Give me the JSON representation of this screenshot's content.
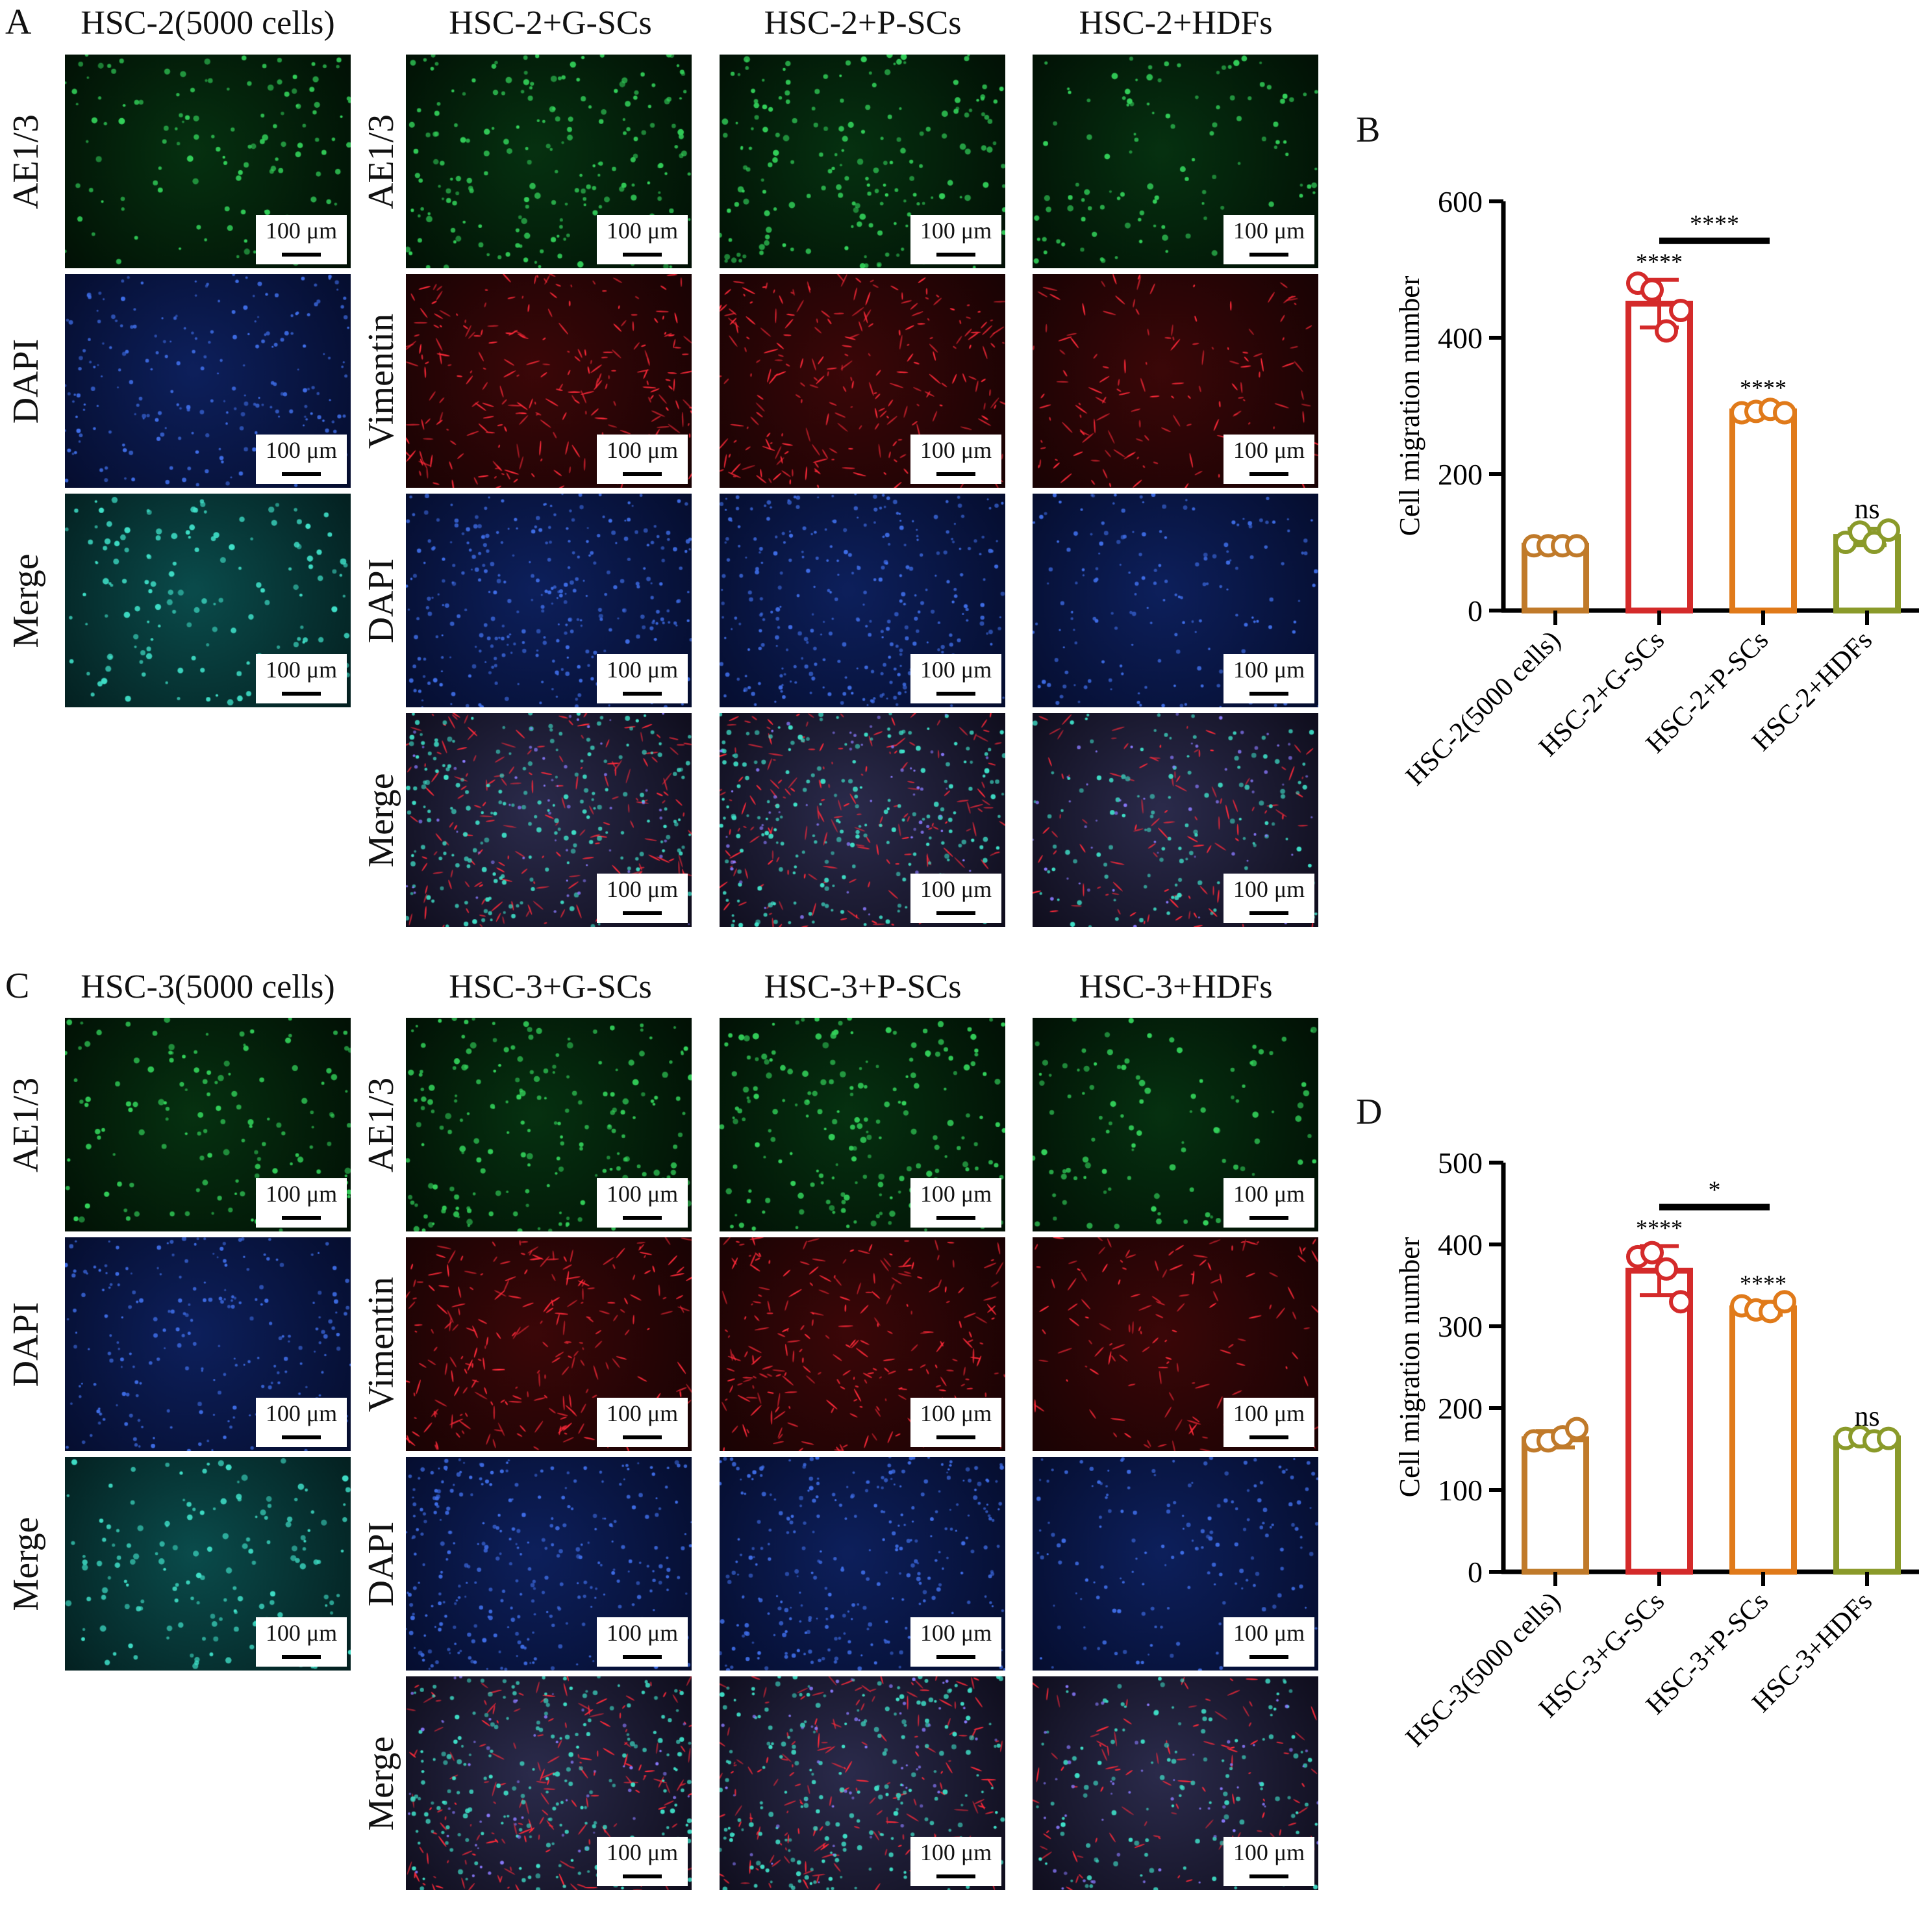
{
  "figure": {
    "panel_letters": [
      "A",
      "B",
      "C",
      "D"
    ],
    "scale_bar_label": "100 μm",
    "colors": {
      "ae13_green": "#1f9a3a",
      "dapi_blue": "#1a3aa8",
      "vimentin_red": "#d41a2a",
      "bar_hsc_only": "#c07a2a",
      "bar_gscs": "#d42a2a",
      "bar_pscs": "#e07a1a",
      "bar_hdfs": "#8a9a2a"
    }
  },
  "panel_a": {
    "column_titles": [
      "HSC-2(5000 cells)",
      "HSC-2+G-SCs",
      "HSC-2+P-SCs",
      "HSC-2+HDFs"
    ],
    "single_rows": [
      "AE1/3",
      "DAPI",
      "Merge"
    ],
    "cocult_rows": [
      "AE1/3",
      "Vimentin",
      "DAPI",
      "Merge"
    ]
  },
  "panel_c": {
    "column_titles": [
      "HSC-3(5000 cells)",
      "HSC-3+G-SCs",
      "HSC-3+P-SCs",
      "HSC-3+HDFs"
    ],
    "single_rows": [
      "AE1/3",
      "DAPI",
      "Merge"
    ],
    "cocult_rows": [
      "AE1/3",
      "Vimentin",
      "DAPI",
      "Merge"
    ]
  },
  "chart_data": [
    {
      "type": "bar",
      "ylabel": "Cell migration number",
      "ylim": [
        0,
        600
      ],
      "yticks": [
        0,
        200,
        400,
        600
      ],
      "categories": [
        "HSC-2(5000 cells)",
        "HSC-2+G-SCs",
        "HSC-2+P-SCs",
        "HSC-2+HDFs"
      ],
      "values": [
        95,
        450,
        292,
        108
      ],
      "errors": [
        4,
        35,
        8,
        12
      ],
      "points": [
        [
          95,
          95,
          95,
          95
        ],
        [
          480,
          470,
          410,
          440
        ],
        [
          290,
          292,
          295,
          290
        ],
        [
          100,
          115,
          100,
          118
        ]
      ],
      "significance": [
        "",
        "****",
        "****",
        "ns"
      ],
      "comparison": {
        "from": 1,
        "to": 2,
        "label": "****"
      }
    },
    {
      "type": "bar",
      "ylabel": "Cell migration number",
      "ylim": [
        0,
        500
      ],
      "yticks": [
        0,
        100,
        200,
        300,
        400,
        500
      ],
      "categories": [
        "HSC-3(5000 cells)",
        "HSC-3+G-SCs",
        "HSC-3+P-SCs",
        "HSC-3+HDFs"
      ],
      "values": [
        162,
        368,
        322,
        163
      ],
      "errors": [
        10,
        30,
        8,
        3
      ],
      "points": [
        [
          160,
          160,
          165,
          175
        ],
        [
          385,
          390,
          370,
          330
        ],
        [
          325,
          320,
          318,
          330
        ],
        [
          163,
          165,
          160,
          163
        ]
      ],
      "significance": [
        "",
        "****",
        "****",
        "ns"
      ],
      "comparison": {
        "from": 1,
        "to": 2,
        "label": "*"
      }
    }
  ]
}
